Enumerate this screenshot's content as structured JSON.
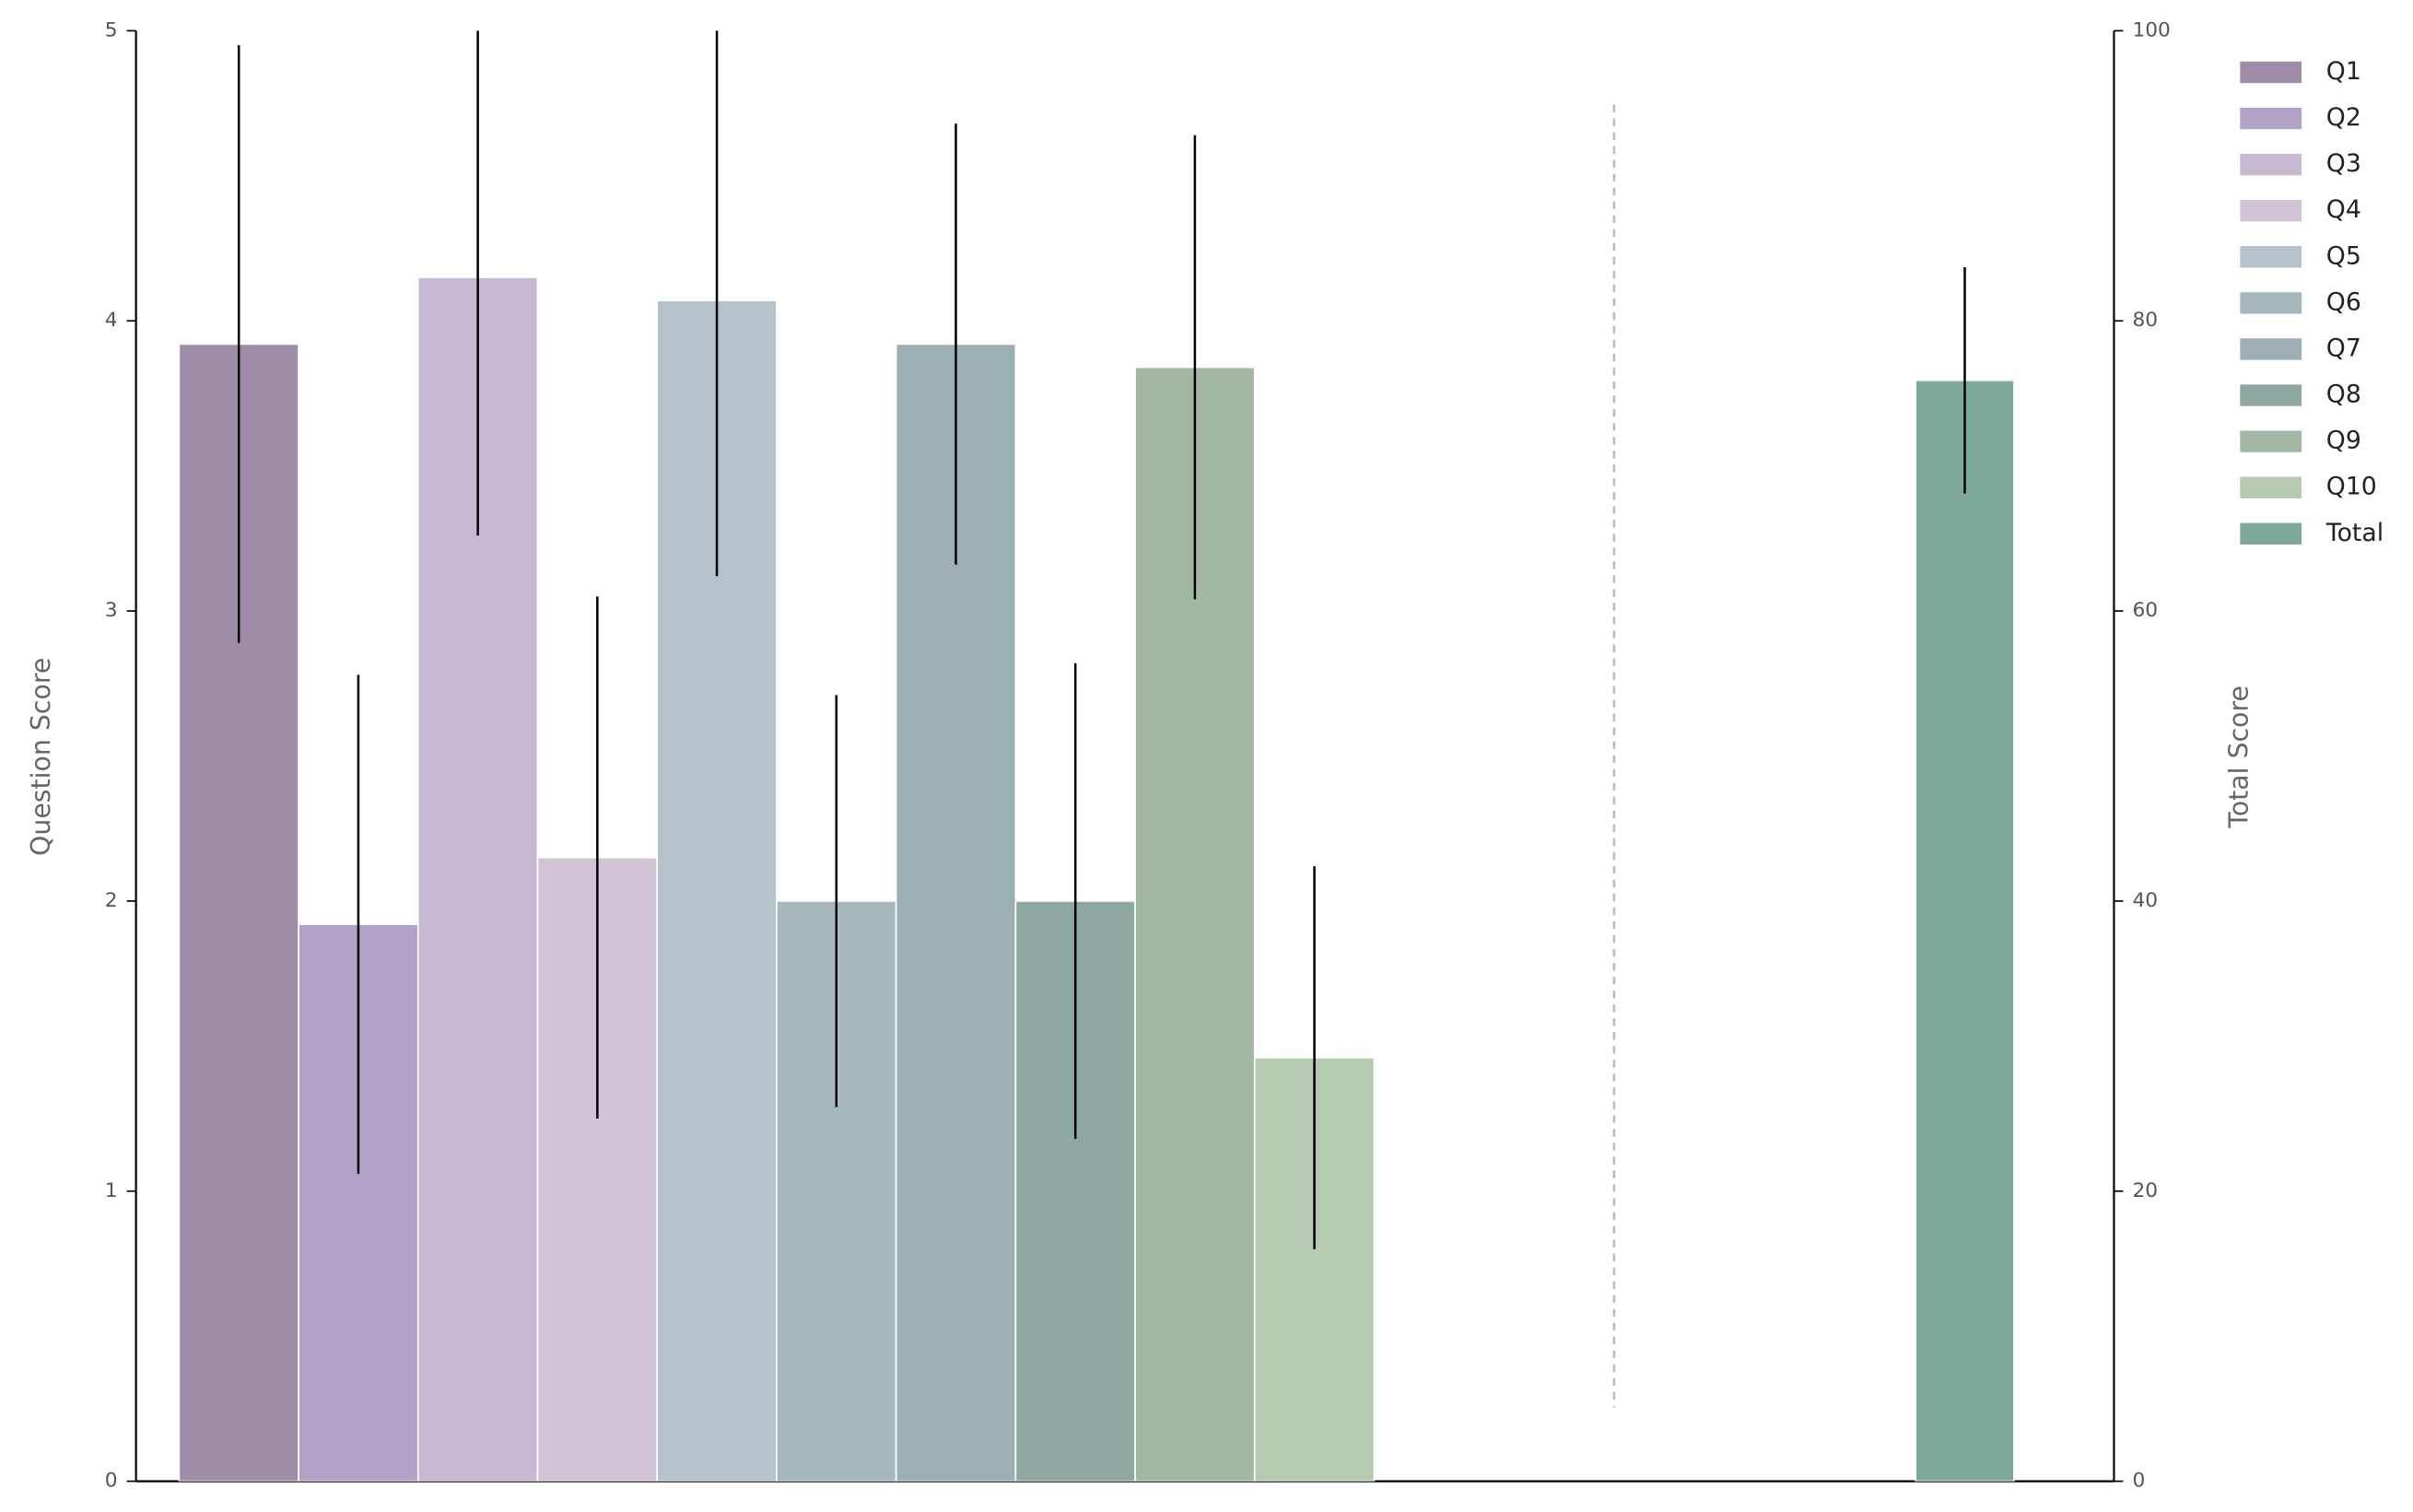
{
  "chart_data": {
    "type": "bar",
    "y_label": "Question Score",
    "y2_label": "Total Score",
    "ylim": [
      0,
      5
    ],
    "yticks": [
      0,
      1,
      2,
      3,
      4,
      5
    ],
    "y2lim": [
      0,
      100
    ],
    "y2ticks": [
      0,
      20,
      40,
      60,
      80,
      100
    ],
    "series": [
      {
        "name": "Q1",
        "color": "#9f8ca6",
        "values": [
          3.92
        ],
        "errors": [
          1.03
        ]
      },
      {
        "name": "Q2",
        "color": "#b1a3c5",
        "values": [
          1.92
        ],
        "errors": [
          0.86
        ]
      },
      {
        "name": "Q3",
        "color": "#c6b8d2",
        "values": [
          4.15
        ],
        "errors": [
          0.89
        ]
      },
      {
        "name": "Q4",
        "color": "#d1c4d7",
        "values": [
          2.15
        ],
        "errors": [
          0.9
        ]
      },
      {
        "name": "Q5",
        "color": "#b5c2c9",
        "values": [
          4.07
        ],
        "errors": [
          0.95
        ]
      },
      {
        "name": "Q6",
        "color": "#a7b8bc",
        "values": [
          2.0
        ],
        "errors": [
          0.71
        ]
      },
      {
        "name": "Q7",
        "color": "#9cb0b3",
        "values": [
          3.92
        ],
        "errors": [
          0.76
        ]
      },
      {
        "name": "Q8",
        "color": "#8ea7a3",
        "values": [
          2.0
        ],
        "errors": [
          0.82
        ]
      },
      {
        "name": "Q9",
        "color": "#a2b8a2",
        "values": [
          3.84
        ],
        "errors": [
          0.8
        ]
      },
      {
        "name": "Q10",
        "color": "#b7cab2",
        "values": [
          1.46
        ],
        "errors": [
          0.66
        ]
      },
      {
        "name": "Total",
        "color": "#7ea89c",
        "values": [
          75.9
        ],
        "errors": [
          7.8
        ],
        "axis": "y2"
      }
    ]
  }
}
